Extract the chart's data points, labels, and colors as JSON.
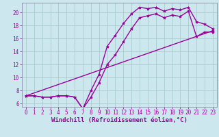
{
  "xlabel": "Windchill (Refroidissement éolien,°C)",
  "ylabel": "",
  "background_color": "#cce8ee",
  "grid_color": "#aacccc",
  "line_color": "#990099",
  "spine_color": "#8888aa",
  "xlim": [
    -0.5,
    23.5
  ],
  "ylim": [
    5.5,
    21.5
  ],
  "xticks": [
    0,
    1,
    2,
    3,
    4,
    5,
    6,
    7,
    8,
    9,
    10,
    11,
    12,
    13,
    14,
    15,
    16,
    17,
    18,
    19,
    20,
    21,
    22,
    23
  ],
  "yticks": [
    6,
    8,
    10,
    12,
    14,
    16,
    18,
    20
  ],
  "line1_x": [
    0,
    1,
    2,
    3,
    4,
    5,
    6,
    7,
    8,
    9,
    10,
    11,
    12,
    13,
    14,
    15,
    16,
    17,
    18,
    19,
    20,
    21,
    22,
    23
  ],
  "line1_y": [
    7.2,
    7.2,
    7.0,
    7.0,
    7.2,
    7.2,
    7.0,
    5.2,
    8.0,
    10.5,
    14.8,
    16.5,
    18.3,
    19.8,
    20.8,
    20.6,
    20.8,
    20.2,
    20.6,
    20.4,
    20.8,
    18.6,
    18.2,
    17.5
  ],
  "line2_x": [
    0,
    1,
    2,
    3,
    4,
    5,
    6,
    7,
    8,
    9,
    10,
    11,
    12,
    13,
    14,
    15,
    16,
    17,
    18,
    19,
    20,
    21,
    22,
    23
  ],
  "line2_y": [
    7.2,
    7.2,
    7.0,
    7.0,
    7.2,
    7.2,
    7.0,
    5.2,
    7.0,
    9.2,
    12.0,
    13.5,
    15.5,
    17.5,
    19.2,
    19.5,
    19.8,
    19.2,
    19.6,
    19.4,
    20.2,
    16.3,
    17.0,
    17.0
  ],
  "line3_x": [
    0,
    23
  ],
  "line3_y": [
    7.2,
    17.2
  ],
  "marker": "*",
  "marker_size": 3,
  "line_width": 1.0,
  "xlabel_fontsize": 6.5,
  "tick_fontsize": 5.5,
  "fig_width": 3.2,
  "fig_height": 2.0,
  "dpi": 100
}
